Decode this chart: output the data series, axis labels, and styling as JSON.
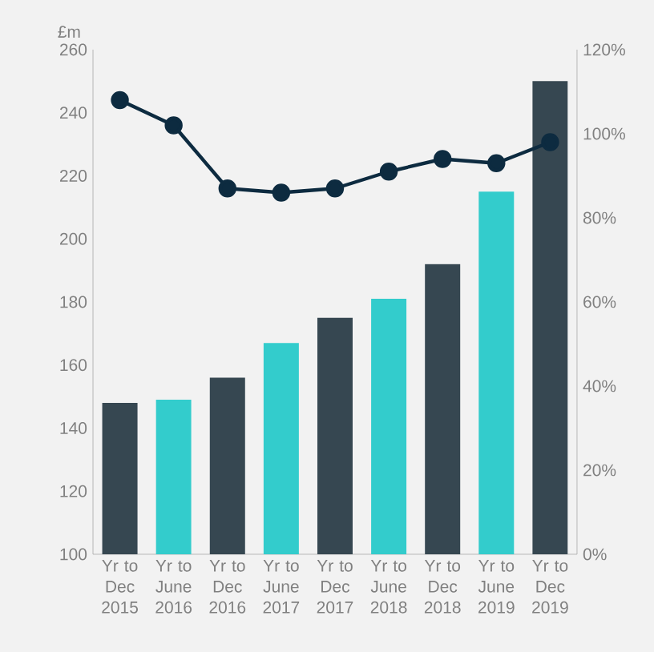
{
  "chart_data": {
    "type": "bar",
    "ylabel": "£m",
    "categories": [
      "Yr to Dec 2015",
      "Yr to June 2016",
      "Yr to Dec 2016",
      "Yr to June 2017",
      "Yr to Dec 2017",
      "Yr to June 2018",
      "Yr to Dec 2018",
      "Yr to June 2019",
      "Yr to Dec 2019"
    ],
    "series": [
      {
        "colors": [
          "#364751",
          "#33cccc",
          "#364751",
          "#33cccc",
          "#364751",
          "#33cccc",
          "#364751",
          "#33cccc",
          "#364751"
        ],
        "values": [
          148,
          149,
          156,
          167,
          175,
          181,
          192,
          215,
          250
        ]
      },
      {
        "type": "line",
        "axis": "y2",
        "color": "#0d2b40",
        "marker": "circle",
        "line_style": "solid",
        "values": [
          108,
          102,
          87,
          86,
          87,
          91,
          94,
          93,
          98
        ]
      }
    ],
    "ylim": [
      100,
      260
    ],
    "yticks": [
      100,
      120,
      140,
      160,
      180,
      200,
      220,
      240,
      260
    ],
    "y2lim": [
      0,
      120
    ],
    "y2ticks": [
      {
        "value": 0,
        "label": "0%"
      },
      {
        "value": 20,
        "label": "20%"
      },
      {
        "value": 40,
        "label": "40%"
      },
      {
        "value": 60,
        "label": "60%"
      },
      {
        "value": 80,
        "label": "80%"
      },
      {
        "value": 100,
        "label": "100%"
      },
      {
        "value": 120,
        "label": "120%"
      }
    ],
    "grid": false
  }
}
